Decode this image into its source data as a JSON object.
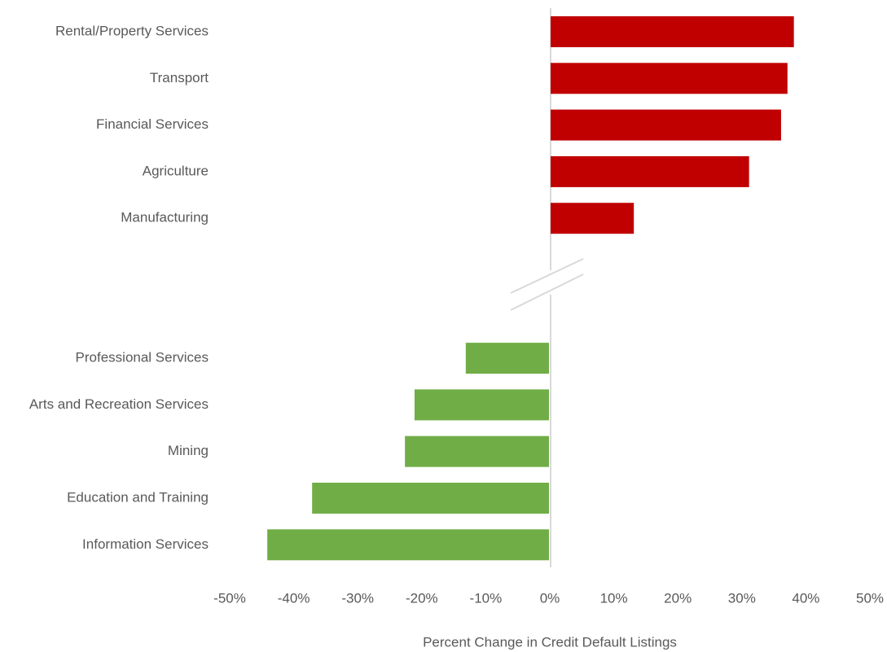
{
  "chart_data": {
    "type": "bar",
    "orientation": "horizontal",
    "xlabel": "Percent Change in Credit Default Listings",
    "categories": [
      "Rental/Property Services",
      "Transport",
      "Financial Services",
      "Agriculture",
      "Manufacturing",
      "Professional Services",
      "Arts and Recreation Services",
      "Mining",
      "Education and Training",
      "Information Services"
    ],
    "values": [
      38,
      37,
      36,
      31,
      13,
      -13,
      -21,
      -22.5,
      -37,
      -44
    ],
    "colors": [
      "#c00000",
      "#c00000",
      "#c00000",
      "#c00000",
      "#c00000",
      "#70ad47",
      "#70ad47",
      "#70ad47",
      "#70ad47",
      "#70ad47"
    ],
    "xlim": [
      -50,
      50
    ],
    "xticks": [
      {
        "value": -50,
        "label": "-50%"
      },
      {
        "value": -40,
        "label": "-40%"
      },
      {
        "value": -30,
        "label": "-30%"
      },
      {
        "value": -20,
        "label": "-20%"
      },
      {
        "value": -10,
        "label": "-10%"
      },
      {
        "value": 0,
        "label": "0%"
      },
      {
        "value": 10,
        "label": "10%"
      },
      {
        "value": 20,
        "label": "20%"
      },
      {
        "value": 30,
        "label": "30%"
      },
      {
        "value": 40,
        "label": "40%"
      },
      {
        "value": 50,
        "label": "50%"
      }
    ],
    "grid": false
  }
}
